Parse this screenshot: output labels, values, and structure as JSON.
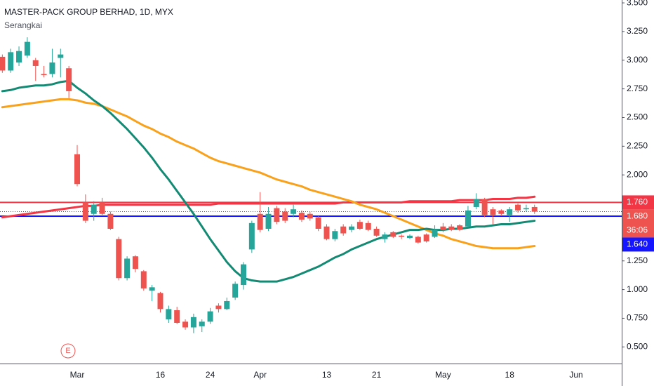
{
  "chart_data": {
    "type": "candlestick",
    "title": "MASTER-PACK GROUP BERHAD, 1D, MYX",
    "subtitle": "Serangkai",
    "categories": [
      null,
      null,
      null,
      null,
      null,
      null,
      null,
      null,
      null,
      "Mar",
      null,
      null,
      null,
      null,
      null,
      null,
      null,
      null,
      null,
      "16",
      null,
      null,
      null,
      null,
      null,
      "24",
      null,
      null,
      null,
      null,
      null,
      "Apr",
      null,
      null,
      null,
      null,
      null,
      null,
      null,
      "13",
      null,
      null,
      null,
      null,
      null,
      "21",
      null,
      null,
      null,
      null,
      null,
      null,
      null,
      "May",
      null,
      null,
      null,
      null,
      null,
      null,
      null,
      "18",
      null,
      null,
      null,
      null,
      null,
      null,
      null,
      "Jun"
    ],
    "candles": {
      "up_color": "#26a69a",
      "down_color": "#ef5350",
      "open": [
        3.03,
        2.91,
        2.98,
        3.04,
        3.0,
        2.88,
        2.88,
        3.02,
        2.93,
        2.18,
        1.76,
        1.66,
        1.76,
        1.66,
        1.44,
        1.1,
        1.29,
        1.16,
        0.99,
        0.97,
        0.74,
        0.82,
        0.72,
        0.67,
        0.68,
        0.72,
        0.86,
        0.83,
        0.93,
        1.04,
        1.35,
        1.66,
        1.53,
        1.71,
        1.68,
        1.66,
        1.67,
        1.66,
        1.63,
        1.55,
        1.44,
        1.55,
        1.52,
        1.59,
        1.58,
        1.53,
        1.44,
        1.5,
        1.47,
        1.45,
        1.46,
        1.48,
        1.46,
        1.55,
        1.55,
        1.56,
        1.55,
        1.72,
        1.79,
        1.7,
        1.69,
        1.65,
        1.74,
        1.7,
        1.72,
        null,
        null,
        null,
        null,
        null
      ],
      "high": [
        3.05,
        3.1,
        3.12,
        3.2,
        3.02,
        2.95,
        3.1,
        3.1,
        2.95,
        2.26,
        1.83,
        1.77,
        1.8,
        1.68,
        1.46,
        1.29,
        1.3,
        1.17,
        1.04,
        0.98,
        0.86,
        0.85,
        0.74,
        0.79,
        0.74,
        0.84,
        0.88,
        0.93,
        1.07,
        1.24,
        1.6,
        1.85,
        1.72,
        1.73,
        1.71,
        1.74,
        1.69,
        1.68,
        1.64,
        1.57,
        1.53,
        1.57,
        1.57,
        1.61,
        1.6,
        1.55,
        1.5,
        1.51,
        1.48,
        1.48,
        1.47,
        1.49,
        1.56,
        1.58,
        1.57,
        1.57,
        1.73,
        1.84,
        1.8,
        1.72,
        1.7,
        1.72,
        1.75,
        1.74,
        1.74,
        null,
        null,
        null,
        null,
        null
      ],
      "low": [
        2.89,
        2.89,
        2.95,
        3.02,
        2.82,
        2.85,
        2.85,
        2.85,
        2.67,
        1.9,
        1.58,
        1.6,
        1.64,
        1.52,
        1.08,
        1.08,
        1.15,
        0.99,
        0.9,
        0.8,
        0.71,
        0.7,
        0.65,
        0.62,
        0.63,
        0.7,
        0.8,
        0.82,
        0.91,
        1.0,
        1.32,
        1.5,
        1.51,
        1.57,
        1.58,
        1.63,
        1.59,
        1.6,
        1.51,
        1.43,
        1.42,
        1.47,
        1.5,
        1.52,
        1.51,
        1.46,
        1.41,
        1.45,
        1.44,
        1.44,
        1.4,
        1.41,
        1.45,
        1.5,
        1.51,
        1.51,
        1.54,
        1.7,
        1.63,
        1.57,
        1.64,
        1.59,
        1.67,
        1.68,
        1.66,
        null,
        null,
        null,
        null,
        null
      ],
      "close": [
        2.91,
        3.07,
        3.08,
        3.16,
        2.95,
        2.87,
        2.98,
        3.05,
        2.73,
        1.92,
        1.6,
        1.74,
        1.66,
        1.53,
        1.1,
        1.27,
        1.18,
        1.01,
        1.02,
        0.83,
        0.83,
        0.71,
        0.67,
        0.76,
        0.72,
        0.81,
        0.83,
        0.9,
        1.05,
        1.22,
        1.58,
        1.52,
        1.66,
        1.59,
        1.6,
        1.7,
        1.61,
        1.62,
        1.53,
        1.44,
        1.51,
        1.49,
        1.55,
        1.53,
        1.52,
        1.47,
        1.48,
        1.46,
        1.46,
        1.47,
        1.41,
        1.42,
        1.52,
        1.52,
        1.52,
        1.52,
        1.69,
        1.79,
        1.65,
        1.65,
        1.66,
        1.7,
        1.69,
        1.71,
        1.68,
        null,
        null,
        null,
        null,
        null
      ]
    },
    "lines": [
      {
        "color": "#f23645",
        "values": [
          1.63,
          1.64,
          1.65,
          1.66,
          1.67,
          1.68,
          1.69,
          1.7,
          1.71,
          1.72,
          1.73,
          1.73,
          1.74,
          1.74,
          1.74,
          1.74,
          1.74,
          1.74,
          1.74,
          1.74,
          1.74,
          1.74,
          1.74,
          1.74,
          1.74,
          1.74,
          1.75,
          1.75,
          1.75,
          1.75,
          1.75,
          1.75,
          1.75,
          1.75,
          1.75,
          1.75,
          1.75,
          1.75,
          1.75,
          1.75,
          1.75,
          1.76,
          1.76,
          1.76,
          1.76,
          1.76,
          1.76,
          1.76,
          1.76,
          1.77,
          1.77,
          1.77,
          1.77,
          1.77,
          1.77,
          1.78,
          1.78,
          1.78,
          1.78,
          1.79,
          1.79,
          1.79,
          1.8,
          1.8,
          1.81,
          null,
          null,
          null,
          null,
          null
        ]
      },
      {
        "color": "#f9a11b",
        "values": [
          2.59,
          2.6,
          2.61,
          2.62,
          2.63,
          2.64,
          2.65,
          2.66,
          2.66,
          2.65,
          2.63,
          2.62,
          2.6,
          2.57,
          2.54,
          2.51,
          2.47,
          2.43,
          2.4,
          2.36,
          2.33,
          2.29,
          2.26,
          2.23,
          2.19,
          2.15,
          2.12,
          2.1,
          2.08,
          2.06,
          2.04,
          2.02,
          1.99,
          1.96,
          1.94,
          1.92,
          1.9,
          1.87,
          1.85,
          1.83,
          1.81,
          1.79,
          1.77,
          1.74,
          1.72,
          1.7,
          1.67,
          1.64,
          1.61,
          1.58,
          1.55,
          1.52,
          1.49,
          1.47,
          1.44,
          1.42,
          1.4,
          1.38,
          1.37,
          1.36,
          1.36,
          1.36,
          1.36,
          1.37,
          1.38,
          null,
          null,
          null,
          null,
          null
        ]
      },
      {
        "color": "#138a73",
        "values": [
          2.73,
          2.74,
          2.76,
          2.77,
          2.78,
          2.78,
          2.79,
          2.81,
          2.82,
          2.76,
          2.71,
          2.65,
          2.6,
          2.54,
          2.47,
          2.4,
          2.32,
          2.24,
          2.15,
          2.05,
          1.96,
          1.86,
          1.76,
          1.66,
          1.55,
          1.44,
          1.34,
          1.24,
          1.16,
          1.1,
          1.08,
          1.07,
          1.07,
          1.07,
          1.09,
          1.11,
          1.14,
          1.17,
          1.2,
          1.24,
          1.28,
          1.31,
          1.35,
          1.38,
          1.41,
          1.44,
          1.46,
          1.48,
          1.5,
          1.52,
          1.52,
          1.53,
          1.52,
          1.52,
          1.53,
          1.53,
          1.54,
          1.55,
          1.55,
          1.56,
          1.57,
          1.57,
          1.58,
          1.59,
          1.6,
          null,
          null,
          null,
          null,
          null
        ]
      }
    ],
    "hlines": [
      {
        "value": 1.76,
        "label": "1.760",
        "color": "#f23645"
      },
      {
        "value": 1.64,
        "label": "1.640",
        "color": "#1515ff"
      }
    ],
    "last_price": {
      "value": 1.68,
      "label": "1.680",
      "countdown": "36:06",
      "color": "#ef5350",
      "line_color": "#9c27b0"
    },
    "annotations": [
      "E"
    ],
    "ylim": [
      0.355,
      3.525
    ],
    "yticks": [
      {
        "value": 0.5,
        "label": "0.500"
      },
      {
        "value": 0.75,
        "label": "0.750"
      },
      {
        "value": 1.0,
        "label": "1.000"
      },
      {
        "value": 1.25,
        "label": "1.250"
      },
      {
        "value": 2.0,
        "label": "2.000"
      },
      {
        "value": 2.25,
        "label": "2.250"
      },
      {
        "value": 2.5,
        "label": "2.500"
      },
      {
        "value": 2.75,
        "label": "2.750"
      },
      {
        "value": 3.0,
        "label": "3.000"
      },
      {
        "value": 3.25,
        "label": "3.250"
      },
      {
        "value": 3.5,
        "label": "3.500"
      }
    ],
    "grid": false
  }
}
